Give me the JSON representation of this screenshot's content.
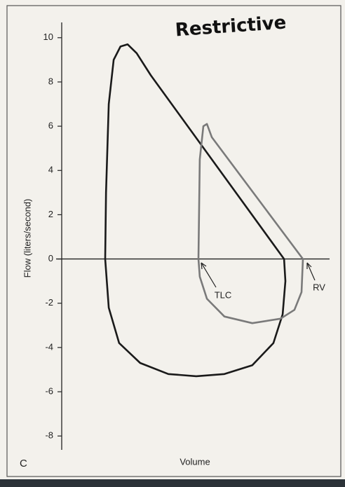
{
  "chart_data": {
    "type": "line",
    "title": "Restrictive",
    "panel_label": "C",
    "x_label": "Volume",
    "y_label": "Flow (liters/second)",
    "annotations": [
      "TLC",
      "RV"
    ],
    "xlim": [
      0,
      100
    ],
    "ylim": [
      -8.5,
      10.5
    ],
    "yticks": [
      -8,
      -6,
      -4,
      -2,
      0,
      2,
      4,
      6,
      8,
      10
    ],
    "grid": false,
    "series": [
      {
        "color": "#1a1a1a",
        "x": [
          15.9,
          16.2,
          17.2,
          19,
          21.5,
          24.1,
          27.4,
          32.6,
          81.3,
          81.8,
          80.8,
          77.4,
          69.7,
          59.5,
          49.2,
          39,
          28.7,
          21,
          17.2,
          15.9
        ],
        "values": [
          0,
          3,
          7,
          9,
          9.6,
          9.7,
          9.3,
          8.3,
          0,
          -1,
          -2.5,
          -3.8,
          -4.8,
          -5.2,
          -5.3,
          -5.2,
          -4.7,
          -3.8,
          -2.2,
          0
        ]
      },
      {
        "color": "#7a7a7a",
        "x": [
          50,
          50.5,
          51.8,
          53.1,
          54.9,
          88.2,
          87.7,
          85.1,
          80,
          69.7,
          59.5,
          53.1,
          50.5,
          50
        ],
        "values": [
          0,
          4.5,
          6,
          6.1,
          5.5,
          0,
          -1.5,
          -2.3,
          -2.7,
          -2.9,
          -2.6,
          -1.8,
          -0.8,
          0
        ]
      }
    ]
  }
}
